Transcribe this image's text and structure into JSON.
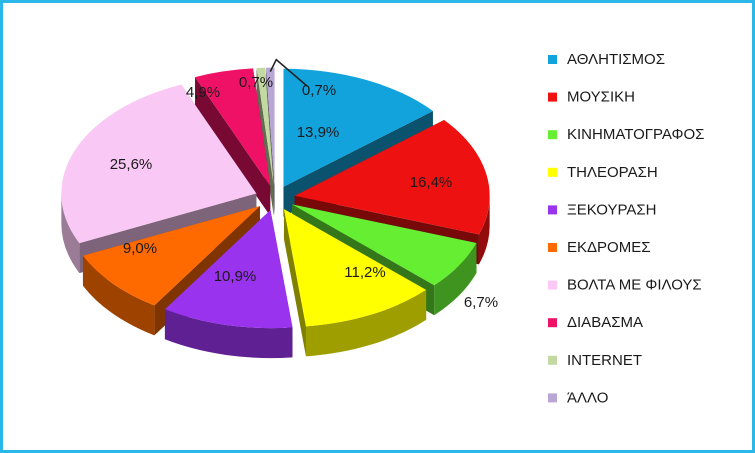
{
  "chart_data": {
    "type": "pie",
    "style": "3d-exploded",
    "title": "",
    "legend_position": "right",
    "categories": [
      "ΑΘΛΗΤΙΣΜΟΣ",
      "ΜΟΥΣΙΚΗ",
      "ΚΙΝΗΜΑΤΟΓΡΑΦΟΣ",
      "ΤΗΛΕΟΡΑΣΗ",
      "ΞΕΚΟΥΡΑΣΗ",
      "ΕΚΔΡΟΜΕΣ",
      "ΒΟΛΤΑ ΜΕ ΦΙΛΟΥΣ",
      "ΔΙΑΒΑΣΜΑ",
      "INTERNET",
      "ΆΛΛΟ"
    ],
    "values": [
      13.9,
      16.4,
      6.7,
      11.2,
      10.9,
      9.0,
      25.6,
      4.9,
      0.7,
      0.7
    ],
    "value_labels": [
      "13,9%",
      "16,4%",
      "6,7%",
      "11,2%",
      "10,9%",
      "9,0%",
      "25,6%",
      "4,9%",
      "0,7%",
      "0,7%"
    ],
    "colors": [
      "#13a3dc",
      "#ee1111",
      "#66ee33",
      "#ffff00",
      "#9933ee",
      "#ff6a00",
      "#f9c8f4",
      "#ee1166",
      "#c2d9a2",
      "#b8a6d4"
    ]
  }
}
